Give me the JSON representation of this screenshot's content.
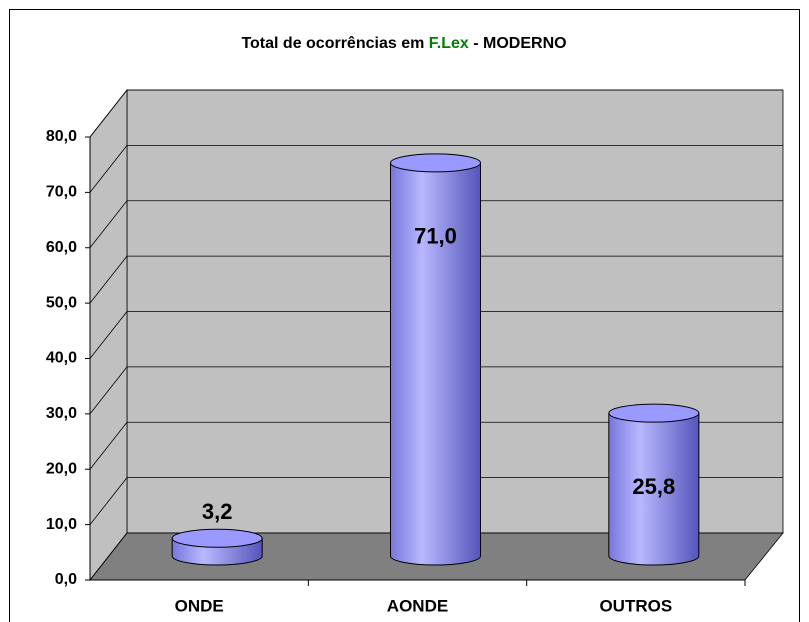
{
  "chart_data": {
    "type": "bar3d",
    "title": [
      "Total de ocorrências em",
      "F.Lex",
      "- MODERNO"
    ],
    "categories": [
      "ONDE",
      "AONDE",
      "OUTROS"
    ],
    "values": [
      3.2,
      71.0,
      25.8
    ],
    "value_labels": [
      "3,2",
      "71,0",
      "25,8"
    ],
    "color": "#9999ff",
    "ylim": [
      0,
      80
    ],
    "yticks": [
      {
        "value": 0,
        "label": "0,0"
      },
      {
        "value": 10,
        "label": "10,0"
      },
      {
        "value": 20,
        "label": "20,0"
      },
      {
        "value": 30,
        "label": "30,0"
      },
      {
        "value": 40,
        "label": "40,0"
      },
      {
        "value": 50,
        "label": "50,0"
      },
      {
        "value": 60,
        "label": "60,0"
      },
      {
        "value": 70,
        "label": "70,0"
      },
      {
        "value": 80,
        "label": "80,0"
      }
    ],
    "grid": true
  }
}
